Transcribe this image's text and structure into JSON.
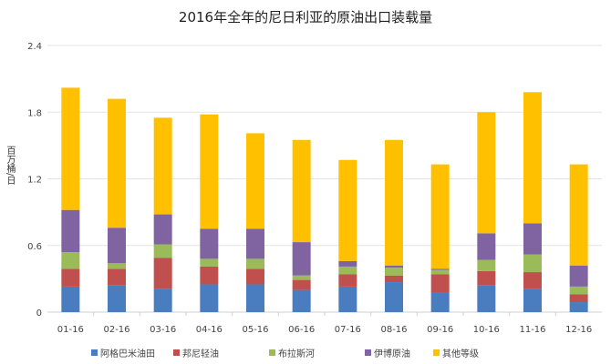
{
  "chart_data": {
    "type": "bar",
    "stacked": true,
    "title": "2016年全年的尼日利亚的原油出口装载量",
    "xlabel": "",
    "ylabel": "百万桶/日",
    "ylim": [
      0,
      2.4
    ],
    "yticks": [
      "0",
      "0.6",
      "1.2",
      "1.8",
      "2.4"
    ],
    "ytick_values": [
      0,
      0.6,
      1.2,
      1.8,
      2.4
    ],
    "grid": true,
    "legend_position": "bottom",
    "categories": [
      "01-16",
      "02-16",
      "03-16",
      "04-16",
      "05-16",
      "06-16",
      "07-16",
      "08-16",
      "09-16",
      "10-16",
      "11-16",
      "12-16"
    ],
    "series": [
      {
        "name": "阿格巴米油田",
        "color": "#4a7dbf",
        "values": [
          0.23,
          0.24,
          0.21,
          0.25,
          0.25,
          0.2,
          0.23,
          0.27,
          0.18,
          0.24,
          0.21,
          0.09
        ]
      },
      {
        "name": "邦尼轻油",
        "color": "#c0504d",
        "values": [
          0.16,
          0.15,
          0.28,
          0.16,
          0.14,
          0.09,
          0.11,
          0.06,
          0.16,
          0.13,
          0.15,
          0.07
        ]
      },
      {
        "name": "布拉斯河",
        "color": "#9bbb59",
        "values": [
          0.15,
          0.05,
          0.12,
          0.07,
          0.09,
          0.04,
          0.07,
          0.07,
          0.04,
          0.1,
          0.16,
          0.07
        ]
      },
      {
        "name": "伊博原油",
        "color": "#8064a2",
        "values": [
          0.38,
          0.32,
          0.27,
          0.27,
          0.27,
          0.3,
          0.05,
          0.02,
          0.01,
          0.24,
          0.28,
          0.19
        ]
      },
      {
        "name": "其他等级",
        "color": "#ffc000",
        "values": [
          1.1,
          1.16,
          0.87,
          1.03,
          0.86,
          0.92,
          0.91,
          1.13,
          0.94,
          1.09,
          1.18,
          0.91
        ]
      }
    ]
  }
}
